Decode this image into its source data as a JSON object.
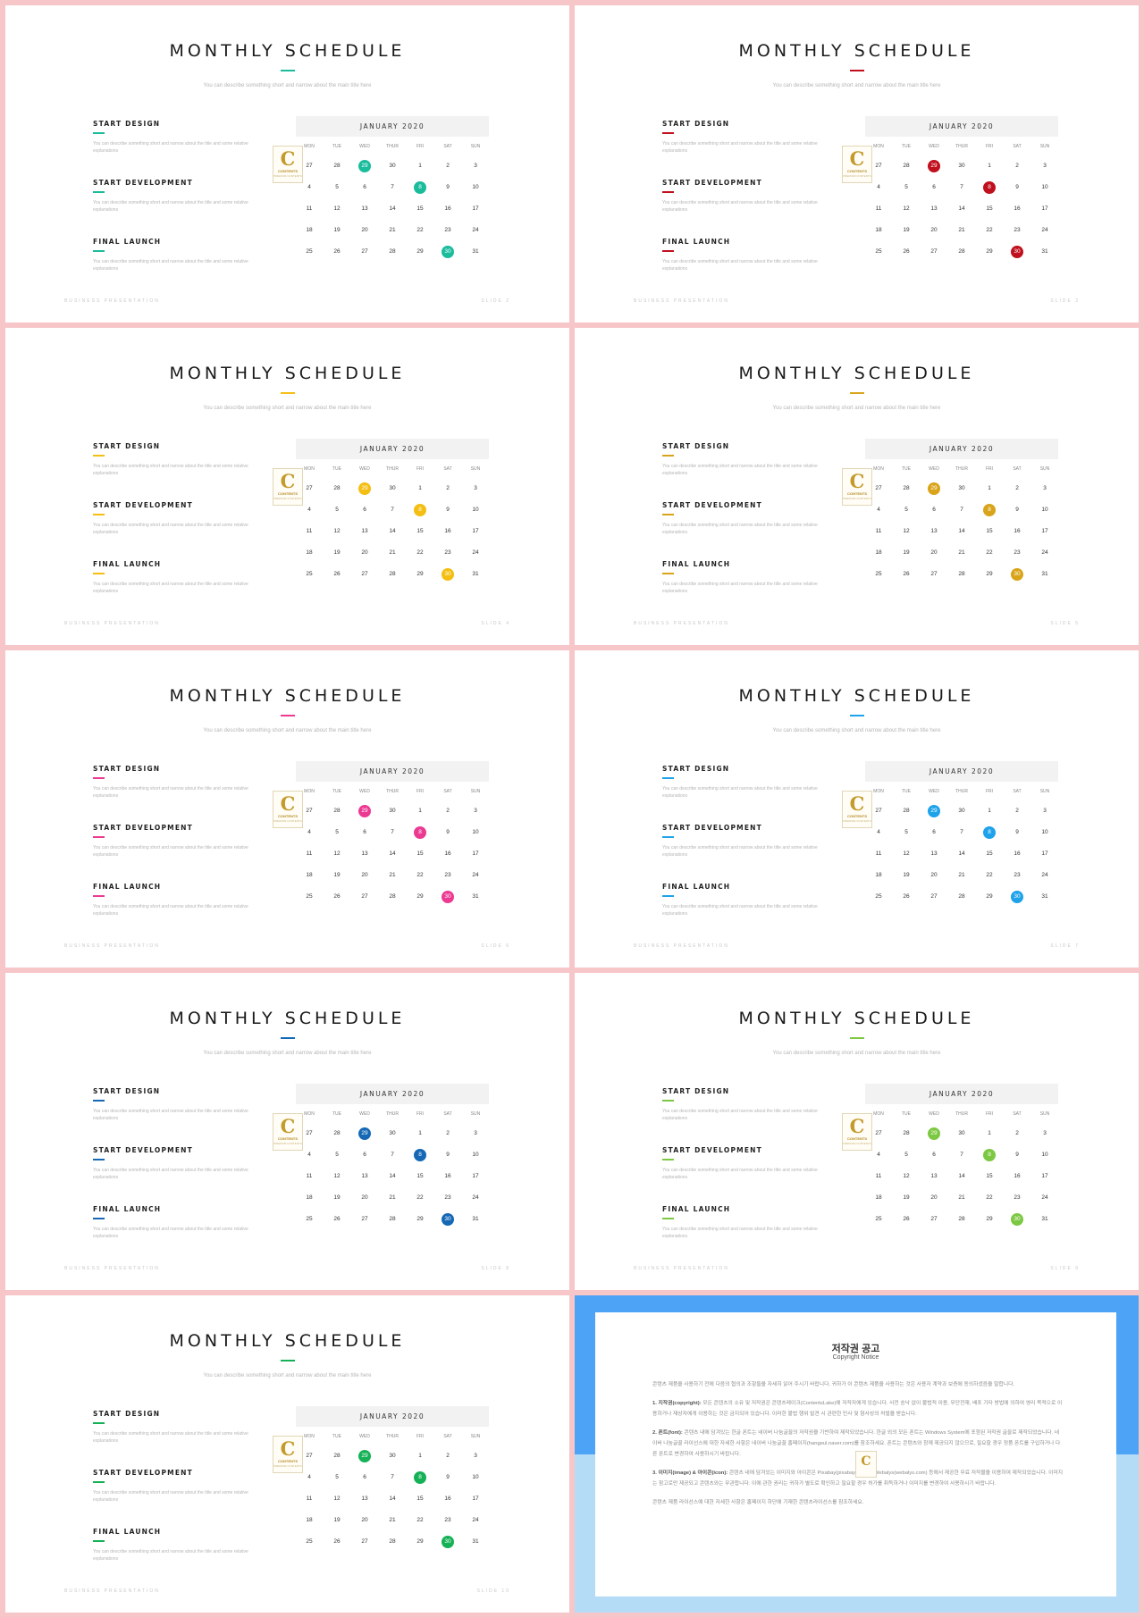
{
  "common": {
    "title": "MONTHLY SCHEDULE",
    "subtitle": "You can describe something short and narrow about the main title here",
    "items": [
      {
        "heading": "START DESIGN",
        "desc": "You can describe something short and narrow about the title and some relative explanations"
      },
      {
        "heading": "START DEVELOPMENT",
        "desc": "You can describe something short and narrow about the title and some relative explanations"
      },
      {
        "heading": "FINAL LAUNCH",
        "desc": "You can describe something short and narrow about the title and some relative explanations"
      }
    ],
    "calendar_month": "JANUARY 2020",
    "weekdays": [
      "MON",
      "TUE",
      "WED",
      "THUR",
      "FRI",
      "SAT",
      "SUN"
    ],
    "weeks": [
      [
        "27",
        "28",
        "29",
        "30",
        "1",
        "2",
        "3"
      ],
      [
        "4",
        "5",
        "6",
        "7",
        "8",
        "9",
        "10"
      ],
      [
        "11",
        "12",
        "13",
        "14",
        "15",
        "16",
        "17"
      ],
      [
        "18",
        "19",
        "20",
        "21",
        "22",
        "23",
        "24"
      ],
      [
        "25",
        "26",
        "27",
        "28",
        "29",
        "30",
        "31"
      ]
    ],
    "highlighted_cells": [
      [
        0,
        2
      ],
      [
        1,
        4
      ],
      [
        4,
        5
      ]
    ],
    "footer_left": "BUSINESS PRESENTATION",
    "logo_letter": "C",
    "logo_text": "CONTENTS",
    "logo_small": "PREMIUM CONTENTS",
    "logo_icon": "contents-logo-icon"
  },
  "slides": [
    {
      "accent": "#1abc9c",
      "slide_label": "SLIDE 2"
    },
    {
      "accent": "#c0101e",
      "slide_label": "SLIDE 3"
    },
    {
      "accent": "#f4be12",
      "slide_label": "SLIDE 4"
    },
    {
      "accent": "#d9a41a",
      "slide_label": "SLIDE 5"
    },
    {
      "accent": "#ec3a93",
      "slide_label": "SLIDE 6"
    },
    {
      "accent": "#1ea3ea",
      "slide_label": "SLIDE 7"
    },
    {
      "accent": "#1568b5",
      "slide_label": "SLIDE 8"
    },
    {
      "accent": "#7dc843",
      "slide_label": "SLIDE 9"
    },
    {
      "accent": "#15b156",
      "slide_label": "SLIDE 10"
    }
  ],
  "copyright": {
    "title": "저작권 공고",
    "subtitle": "Copyright Notice",
    "intro": "콘텐츠 제품을 사용하기 전에 다음의 협의과 조항들을 자세히 읽어 주시기 바랍니다. 귀하가 이 콘텐츠 제품을 사용하는 것은 사용자 계약과 보증에 동의하셨음을 말합니다.",
    "sections": [
      {
        "head": "1. 지작권(copyright):",
        "text": "모든 콘텐츠의 소유 및 저작권은 콘텐츠레이크(ContentsLake)에 저작자에게 있습니다. 사전 승낙 없이 불법적 이용, 무단전재, 배포 기타 방법에 의하여 영리 목적으로 이용하거나 재상자에게 이용하는 것은 금지되어 있습니다. 이러한 불법 행위 발견 시 관련한 민사 및 형사상의 처벌을 받습니다."
      },
      {
        "head": "2. 폰트(font):",
        "text": "콘텐츠 내에 담겨있는 한글 폰트는 네이버 나눔글꼴의 저작권을 기반하여 제작되었습니다. 한글 외의 모든 폰트는 Windows System에 포함된 저작권 글꼴로 제작되었습니다. 네이버 나눔글꼴 라이선스에 대한 자세한 사항은 네이버 나눔글꼴 홈페이지(hangeul.naver.com)를 참조하세요. 폰트는 콘텐츠와 함께 제공되지 않으므로, 필요할 경우 정품 폰트를 구입하거나 다른 폰트로 변경하여 사용하시기 바랍니다."
      },
      {
        "head": "3. 이미지(image) & 아이콘(icon):",
        "text": "콘텐츠 내에 담겨있는 이미지와 아이콘은 Pixabay(pixabay.com)와 Webalys(webalys.com) 등에서 제공한 무료 저작물을 이용하여 제작되었습니다. 이미지는 참고로만 제공되고 콘텐츠와는 무관합니다. 이에 관한 권리는 귀하가 별도로 확인하고 필요할 경우 허가를 취득하거나 이미지를 변경하여 사용하시기 바랍니다."
      }
    ],
    "outro": "콘텐츠 제품 라이선스에 대한 자세한 사항은 홈페이지 하단에 기재한 콘텐츠라이선스를 참조하세요.",
    "colors": {
      "top": "#4da3f5",
      "bottom": "#b4dcf7"
    }
  }
}
